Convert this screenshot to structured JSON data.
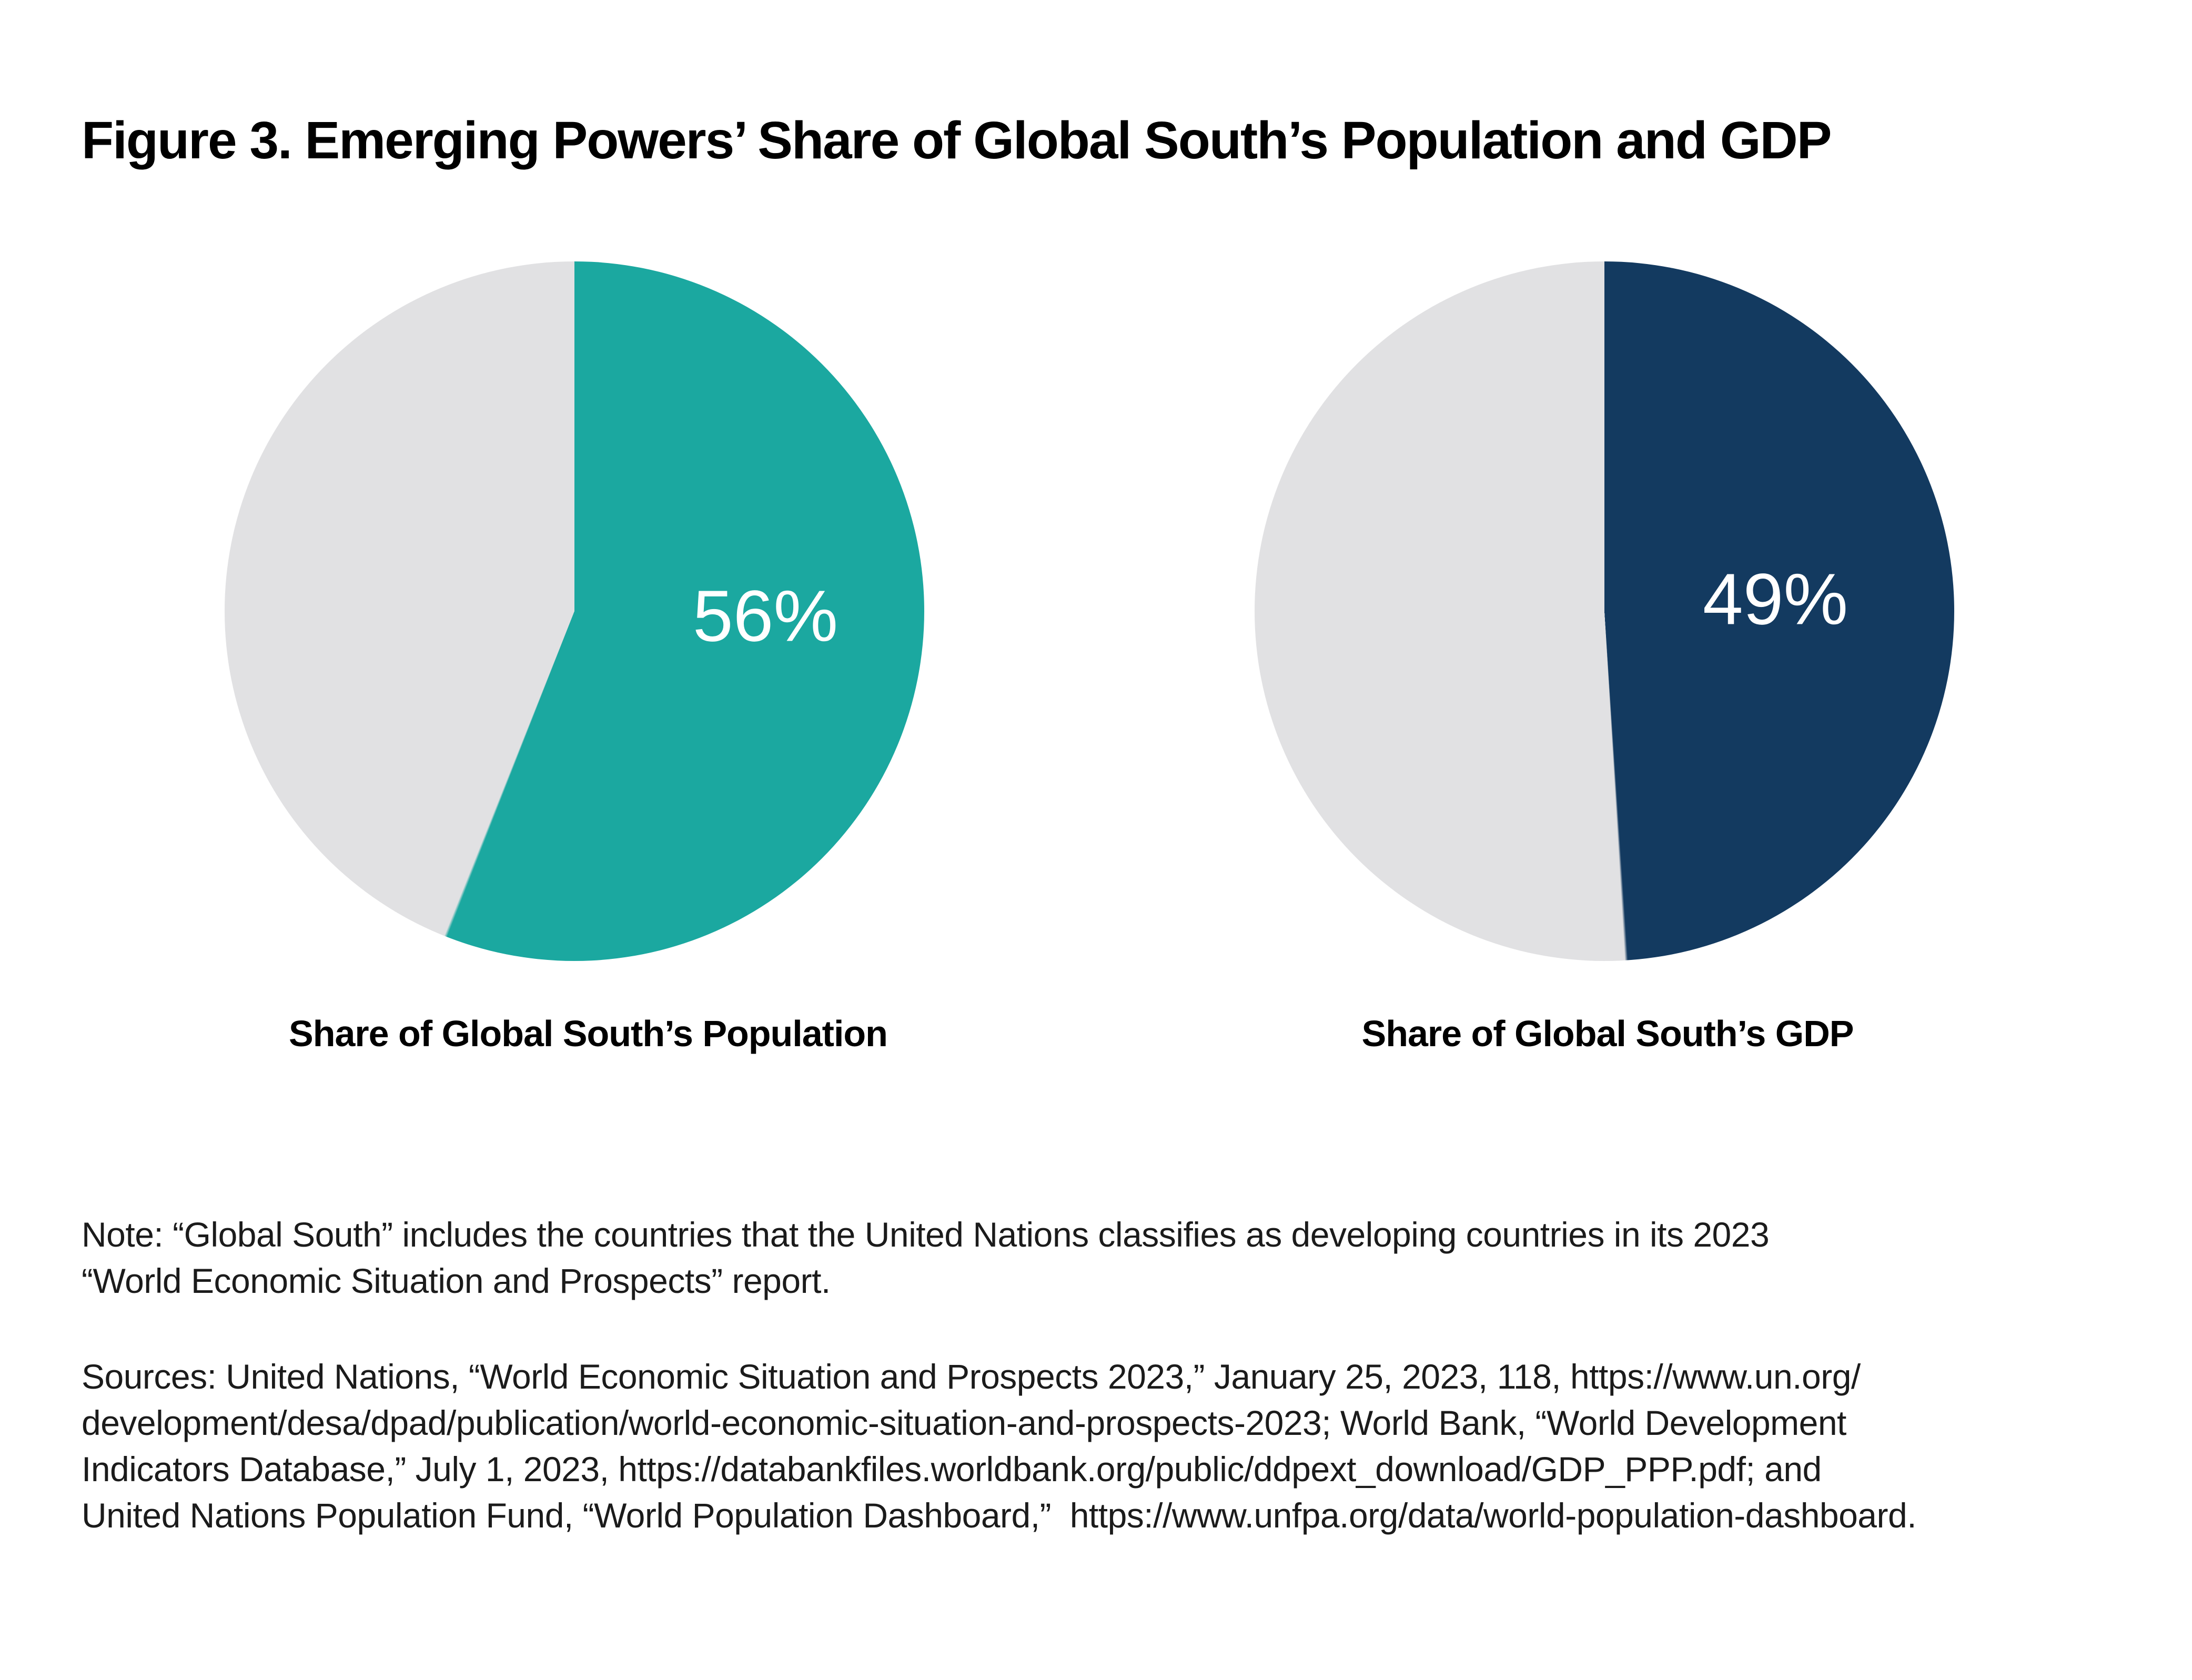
{
  "figure": {
    "title": "Figure 3. Emerging Powers’ Share of Global South’s Population and GDP",
    "note": "Note: “Global South” includes the countries that the United Nations classifies as developing countries in its 2023\n“World Economic Situation and Prospects” report.",
    "sources": "Sources: United Nations, “World Economic Situation and Prospects 2023,” January 25, 2023, 118, https://www.un.org/\ndevelopment/desa/dpad/publication/world-economic-situation-and-prospects-2023; World Bank, “World Development\nIndicators Database,” July 1, 2023, https://databankfiles.worldbank.org/public/ddpext_download/GDP_PPP.pdf; and\nUnited Nations Population Fund, “World Population Dashboard,”  https://www.unfpa.org/data/world-population-dashboard."
  },
  "colors": {
    "teal": "#1BA8A0",
    "navy": "#133A60",
    "grey": "#E1E1E3",
    "background": "#FFFFFF",
    "text": "#000000"
  },
  "chart_data": [
    {
      "type": "pie",
      "title": "Share of Global South’s Population",
      "values": [
        56,
        44
      ],
      "colors": [
        "#1BA8A0",
        "#E1E1E3"
      ],
      "data_labels": [
        "56%",
        ""
      ],
      "start_angle_deg": 0,
      "direction": "clockwise",
      "legend": "none"
    },
    {
      "type": "pie",
      "title": "Share of Global South’s GDP",
      "values": [
        49,
        51
      ],
      "colors": [
        "#133A60",
        "#E1E1E3"
      ],
      "data_labels": [
        "49%",
        ""
      ],
      "start_angle_deg": 0,
      "direction": "clockwise",
      "legend": "none"
    }
  ]
}
